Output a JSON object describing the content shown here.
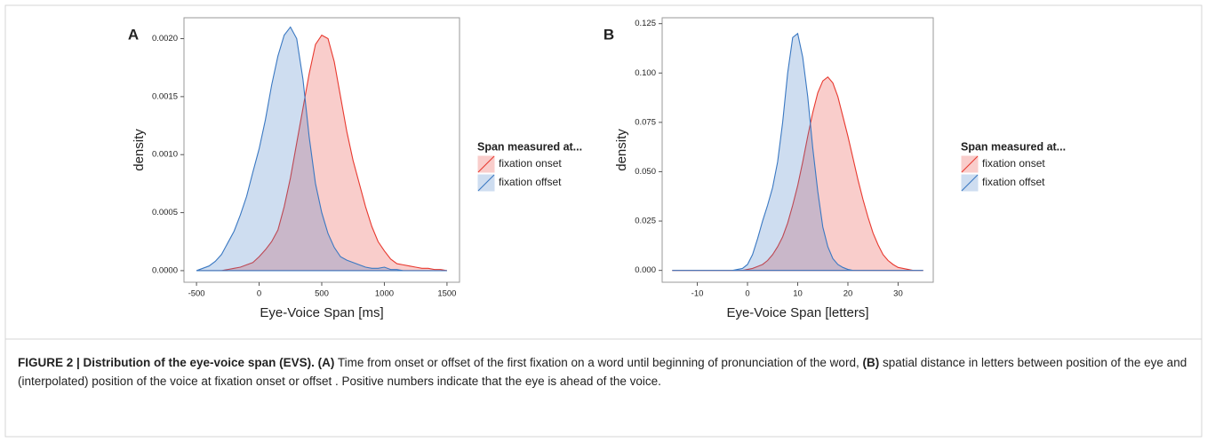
{
  "chart_data": [
    {
      "type": "area",
      "panel_label": "A",
      "x_label": "Eye-Voice Span [ms]",
      "y_label": "density",
      "legend_title": "Span measured at...",
      "x": [
        -500,
        -450,
        -400,
        -350,
        -300,
        -250,
        -200,
        -150,
        -100,
        -50,
        0,
        50,
        100,
        150,
        200,
        250,
        300,
        350,
        400,
        450,
        500,
        550,
        600,
        650,
        700,
        750,
        800,
        850,
        900,
        950,
        1000,
        1050,
        1100,
        1150,
        1200,
        1250,
        1300,
        1350,
        1400,
        1450,
        1500
      ],
      "series": [
        {
          "name": "fixation onset",
          "color": "#e8392f",
          "values": [
            0,
            0,
            0,
            0,
            0,
            1e-05,
            2e-05,
            3e-05,
            5e-05,
            7e-05,
            0.00012,
            0.00018,
            0.00025,
            0.00035,
            0.00055,
            0.0008,
            0.0011,
            0.0014,
            0.0017,
            0.00195,
            0.00203,
            0.002,
            0.0018,
            0.0015,
            0.0012,
            0.00095,
            0.00075,
            0.00055,
            0.00038,
            0.00025,
            0.00017,
            0.0001,
            6e-05,
            5e-05,
            4e-05,
            3e-05,
            2e-05,
            2e-05,
            1e-05,
            1e-05,
            0
          ]
        },
        {
          "name": "fixation offset",
          "color": "#3a78c2",
          "values": [
            0,
            2e-05,
            4e-05,
            8e-05,
            0.00014,
            0.00024,
            0.00034,
            0.00048,
            0.00064,
            0.00085,
            0.00105,
            0.0013,
            0.0016,
            0.00185,
            0.00203,
            0.0021,
            0.002,
            0.00165,
            0.00115,
            0.00075,
            0.0005,
            0.00032,
            0.0002,
            0.00012,
            9e-05,
            7e-05,
            5e-05,
            3e-05,
            2e-05,
            2e-05,
            3e-05,
            1e-05,
            1e-05,
            0,
            0,
            0,
            0,
            0,
            0,
            0,
            0
          ]
        }
      ],
      "xlim": [
        -600,
        1600
      ],
      "ylim": [
        -0.0001,
        0.00218
      ],
      "xticks": [
        -500,
        0,
        500,
        1000,
        1500
      ],
      "yticks": [
        {
          "value": 0,
          "label": "0.0000"
        },
        {
          "value": 0.0005,
          "label": "0.0005"
        },
        {
          "value": 0.001,
          "label": "0.0010"
        },
        {
          "value": 0.0015,
          "label": "0.0015"
        },
        {
          "value": 0.002,
          "label": "0.0020"
        }
      ]
    },
    {
      "type": "area",
      "panel_label": "B",
      "x_label": "Eye-Voice Span [letters]",
      "y_label": "density",
      "legend_title": "Span measured at...",
      "x": [
        -15,
        -14,
        -13,
        -12,
        -11,
        -10,
        -9,
        -8,
        -7,
        -6,
        -5,
        -4,
        -3,
        -2,
        -1,
        0,
        1,
        2,
        3,
        4,
        5,
        6,
        7,
        8,
        9,
        10,
        11,
        12,
        13,
        14,
        15,
        16,
        17,
        18,
        19,
        20,
        21,
        22,
        23,
        24,
        25,
        26,
        27,
        28,
        29,
        30,
        31,
        32,
        33,
        34,
        35
      ],
      "series": [
        {
          "name": "fixation onset",
          "color": "#e8392f",
          "values": [
            0,
            0,
            0,
            0,
            0,
            0,
            0,
            0,
            0,
            0,
            0,
            0,
            0,
            0,
            0,
            0.0005,
            0.001,
            0.002,
            0.003,
            0.005,
            0.008,
            0.012,
            0.017,
            0.024,
            0.033,
            0.043,
            0.055,
            0.068,
            0.08,
            0.09,
            0.096,
            0.098,
            0.095,
            0.088,
            0.078,
            0.068,
            0.057,
            0.046,
            0.036,
            0.027,
            0.019,
            0.013,
            0.008,
            0.005,
            0.003,
            0.0015,
            0.001,
            0.0005,
            0,
            0,
            0
          ]
        },
        {
          "name": "fixation offset",
          "color": "#3a78c2",
          "values": [
            0,
            0,
            0,
            0,
            0,
            0,
            0,
            0,
            0,
            0,
            0,
            0,
            0,
            0.0005,
            0.001,
            0.003,
            0.008,
            0.016,
            0.025,
            0.033,
            0.042,
            0.055,
            0.075,
            0.1,
            0.118,
            0.12,
            0.108,
            0.088,
            0.062,
            0.04,
            0.022,
            0.012,
            0.006,
            0.003,
            0.0015,
            0.0005,
            0,
            0,
            0,
            0,
            0,
            0,
            0,
            0,
            0,
            0,
            0,
            0,
            0,
            0,
            0
          ]
        }
      ],
      "xlim": [
        -17,
        37
      ],
      "ylim": [
        -0.006,
        0.128
      ],
      "xticks": [
        -10,
        0,
        10,
        20,
        30
      ],
      "yticks": [
        {
          "value": 0,
          "label": "0.000"
        },
        {
          "value": 0.025,
          "label": "0.025"
        },
        {
          "value": 0.05,
          "label": "0.050"
        },
        {
          "value": 0.075,
          "label": "0.075"
        },
        {
          "value": 0.1,
          "label": "0.100"
        },
        {
          "value": 0.125,
          "label": "0.125"
        }
      ]
    }
  ],
  "caption": {
    "figure": "FIGURE 2 | Distribution of the eye-voice span (EVS).",
    "a_label": "(A)",
    "a_text": "Time from onset or offset of the first fixation on a word until beginning of pronunciation of the word,",
    "b_label": "(B)",
    "b_text": "spatial distance in letters between position of the eye and (interpolated) position of the voice at fixation onset or offset . Positive numbers indicate that the eye is ahead of the voice."
  }
}
